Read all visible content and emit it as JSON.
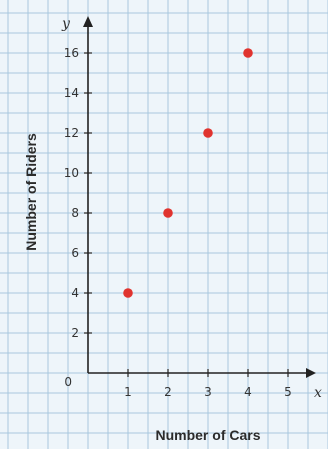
{
  "chart_data": {
    "type": "scatter",
    "x": [
      1,
      2,
      3,
      4
    ],
    "y": [
      4,
      8,
      12,
      16
    ],
    "xlabel": "Number of Cars",
    "ylabel": "Number of Riders",
    "x_var": "x",
    "y_var": "y",
    "origin_label": "0",
    "xlim": [
      0,
      5
    ],
    "ylim": [
      0,
      16
    ],
    "x_ticks": [
      "1",
      "2",
      "3",
      "4",
      "5"
    ],
    "y_ticks": [
      "2",
      "4",
      "6",
      "8",
      "10",
      "12",
      "14",
      "16"
    ],
    "grid": true,
    "point_color": "#e0332e",
    "grid_color": "#a9c8de",
    "background": "#eef5fa"
  }
}
